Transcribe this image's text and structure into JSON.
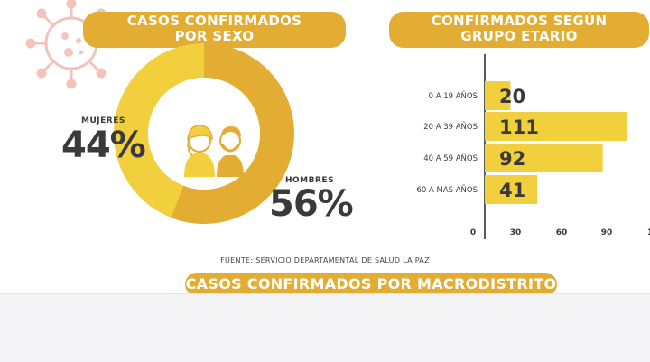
{
  "sex_section": {
    "title_line1": "CASOS CONFIRMADOS",
    "title_line2": "POR SEXO",
    "mujeres_label": "MUJERES",
    "mujeres_pct": "44%",
    "hombres_label": "HOMBRES",
    "hombres_pct": "56%"
  },
  "age_section": {
    "title_line1": "CONFIRMADOS SEGÚN",
    "title_line2": "GRUPO ETARIO"
  },
  "source_text": "FUENTE: SERVICIO DEPARTAMENTAL DE SALUD LA PAZ",
  "macro_title": "CASOS CONFIRMADOS POR MACRODISTRITO",
  "colors": {
    "accent": "#e3ad34",
    "donut_women": "#f2cf3d",
    "donut_men": "#e3ad34",
    "bar": "#f2cf3d",
    "text": "#3a3a3a"
  },
  "chart_data": [
    {
      "type": "pie",
      "categories": [
        "MUJERES",
        "HOMBRES"
      ],
      "values": [
        44,
        56
      ]
    },
    {
      "type": "bar",
      "orientation": "horizontal",
      "categories": [
        "0 A 19 AÑOS",
        "20 A 39 AÑOS",
        "40 A 59 AÑOS",
        "60 A MAS AÑOS"
      ],
      "values": [
        20,
        111,
        92,
        41
      ],
      "xticks": [
        "0",
        "30",
        "60",
        "90",
        "1"
      ],
      "xlim": [
        0,
        120
      ]
    }
  ]
}
